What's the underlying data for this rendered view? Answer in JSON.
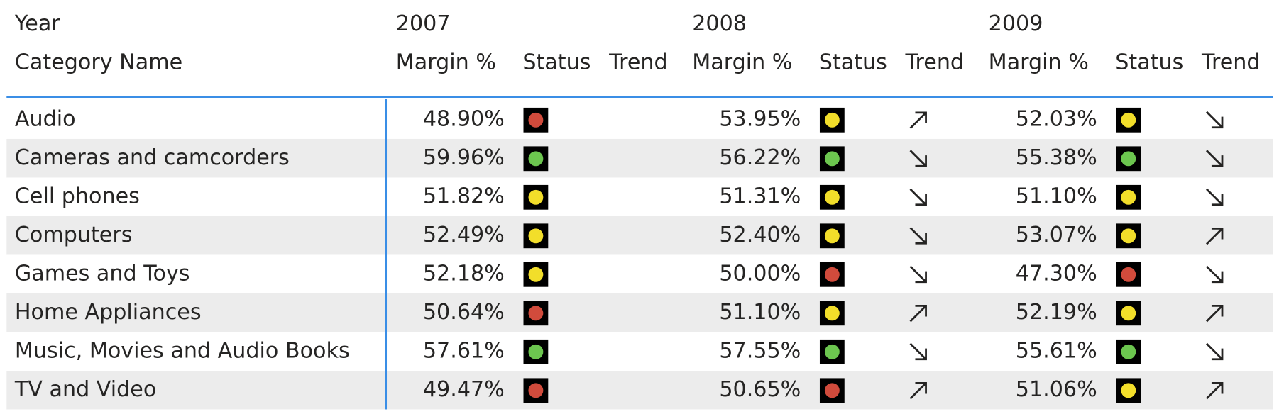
{
  "header": {
    "year_label": "Year",
    "row_label": "Category Name",
    "years": [
      "2007",
      "2008",
      "2009"
    ],
    "columns": [
      "Margin %",
      "Status",
      "Trend"
    ]
  },
  "rows": [
    {
      "category": "Audio",
      "cells": [
        {
          "margin": "48.90%",
          "status": "red"
        },
        {
          "margin": "53.95%",
          "status": "yellow",
          "trend": "up"
        },
        {
          "margin": "52.03%",
          "status": "yellow",
          "trend": "down"
        }
      ]
    },
    {
      "category": "Cameras and camcorders",
      "cells": [
        {
          "margin": "59.96%",
          "status": "green"
        },
        {
          "margin": "56.22%",
          "status": "green",
          "trend": "down"
        },
        {
          "margin": "55.38%",
          "status": "green",
          "trend": "down"
        }
      ]
    },
    {
      "category": "Cell phones",
      "cells": [
        {
          "margin": "51.82%",
          "status": "yellow"
        },
        {
          "margin": "51.31%",
          "status": "yellow",
          "trend": "down"
        },
        {
          "margin": "51.10%",
          "status": "yellow",
          "trend": "down"
        }
      ]
    },
    {
      "category": "Computers",
      "cells": [
        {
          "margin": "52.49%",
          "status": "yellow"
        },
        {
          "margin": "52.40%",
          "status": "yellow",
          "trend": "down"
        },
        {
          "margin": "53.07%",
          "status": "yellow",
          "trend": "up"
        }
      ]
    },
    {
      "category": "Games and Toys",
      "cells": [
        {
          "margin": "52.18%",
          "status": "yellow"
        },
        {
          "margin": "50.00%",
          "status": "red",
          "trend": "down"
        },
        {
          "margin": "47.30%",
          "status": "red",
          "trend": "down"
        }
      ]
    },
    {
      "category": "Home Appliances",
      "cells": [
        {
          "margin": "50.64%",
          "status": "red"
        },
        {
          "margin": "51.10%",
          "status": "yellow",
          "trend": "up"
        },
        {
          "margin": "52.19%",
          "status": "yellow",
          "trend": "up"
        }
      ]
    },
    {
      "category": "Music, Movies and Audio Books",
      "cells": [
        {
          "margin": "57.61%",
          "status": "green"
        },
        {
          "margin": "57.55%",
          "status": "green",
          "trend": "down"
        },
        {
          "margin": "55.61%",
          "status": "green",
          "trend": "down"
        }
      ]
    },
    {
      "category": "TV and Video",
      "cells": [
        {
          "margin": "49.47%",
          "status": "red"
        },
        {
          "margin": "50.65%",
          "status": "red",
          "trend": "up"
        },
        {
          "margin": "51.06%",
          "status": "yellow",
          "trend": "up"
        }
      ]
    }
  ]
}
